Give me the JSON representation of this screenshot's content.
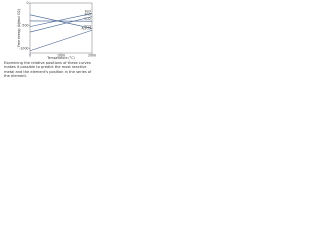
{
  "chart_data": {
    "type": "line",
    "x_label": "Temperature (°C)",
    "y_label": "Free energy (kJ/mol O2)",
    "x": [
      0,
      2000
    ],
    "series": [
      {
        "name": "2CO",
        "color": "#3a5a8c",
        "values": [
          -260,
          -560
        ]
      },
      {
        "name": "CO2",
        "color": "#3a5a8c",
        "values": [
          -395,
          -400
        ]
      },
      {
        "name": "ZnO",
        "color": "#3a5a8c",
        "values": [
          -640,
          -300
        ]
      },
      {
        "name": "FeO",
        "color": "#3a5a8c",
        "values": [
          -520,
          -230
        ]
      },
      {
        "name": "Al2O3",
        "color": "#3a5a8c",
        "values": [
          -1050,
          -600
        ]
      }
    ],
    "xlim": [
      0,
      2000
    ],
    "ylim": [
      -1100,
      0
    ],
    "xticks": [
      0,
      1000,
      2000
    ],
    "yticks": [
      -1000,
      -500,
      0
    ],
    "grid": false
  },
  "caption": "Examining the relative positions of these curves makes it possible to predict the most reactive metal and the element's position in the series of the element."
}
